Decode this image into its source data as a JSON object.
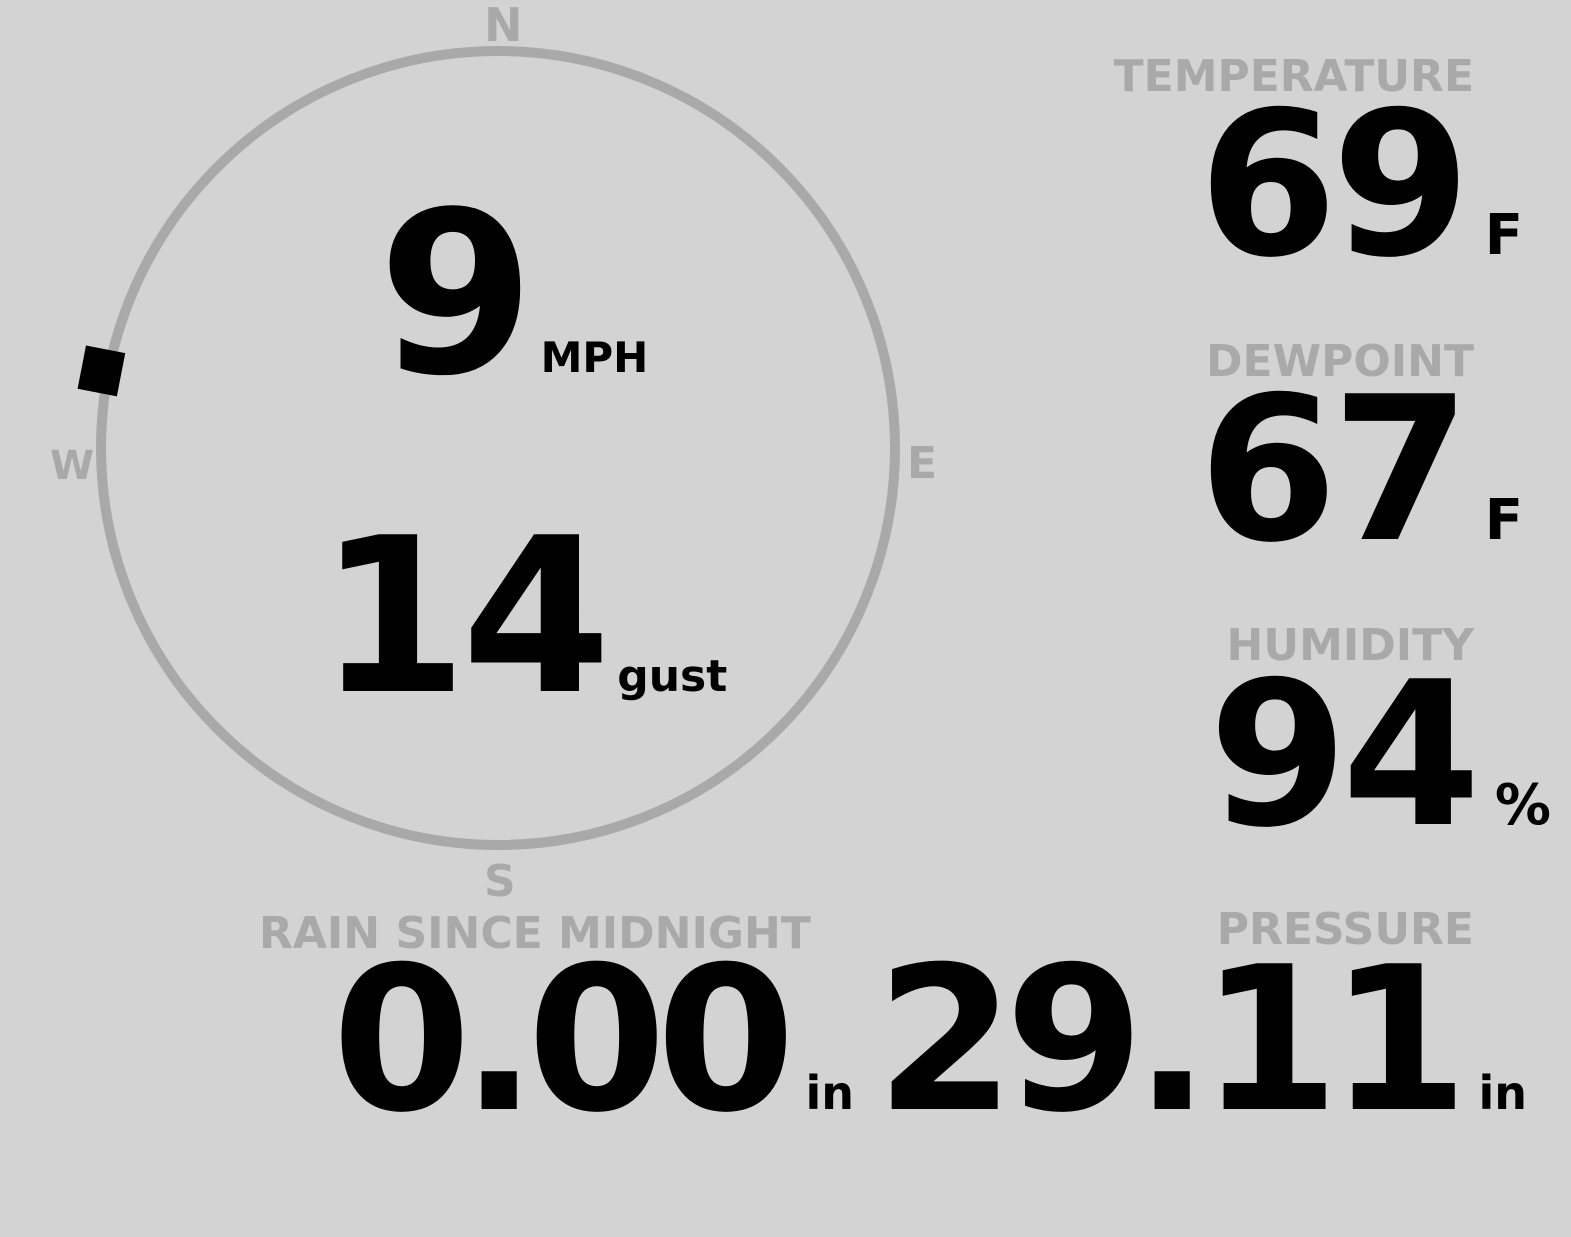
{
  "wind": {
    "speed": "9",
    "speed_unit": "MPH",
    "gust": "14",
    "gust_unit": "gust",
    "direction_degrees": 281,
    "compass": {
      "n": "N",
      "e": "E",
      "s": "S",
      "w": "W"
    }
  },
  "temperature": {
    "label": "TEMPERATURE",
    "value": "69",
    "unit": "F"
  },
  "dewpoint": {
    "label": "DEWPOINT",
    "value": "67",
    "unit": "F"
  },
  "humidity": {
    "label": "HUMIDITY",
    "value": "94",
    "unit": "%"
  },
  "rain": {
    "label": "RAIN SINCE MIDNIGHT",
    "value": "0.00",
    "unit": "in"
  },
  "pressure": {
    "label": "PRESSURE",
    "value": "29.11",
    "unit": "in"
  },
  "colors": {
    "background": "#d3d3d3",
    "label": "#a9a9a9",
    "value": "#000000"
  }
}
